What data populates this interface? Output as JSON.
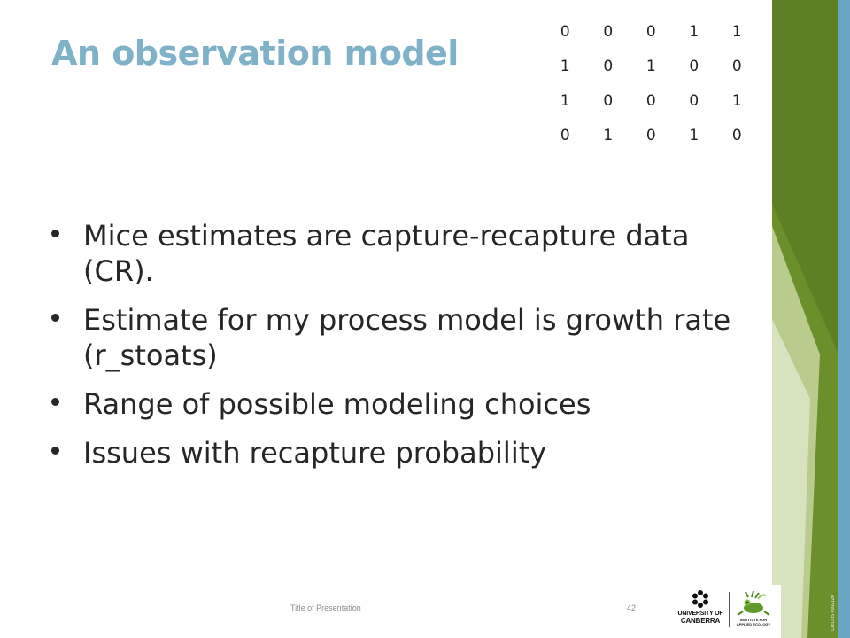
{
  "slide": {
    "title": "An observation model",
    "matrix": [
      [
        "0",
        "0",
        "0",
        "1",
        "1"
      ],
      [
        "1",
        "0",
        "1",
        "0",
        "0"
      ],
      [
        "1",
        "0",
        "0",
        "0",
        "1"
      ],
      [
        "0",
        "1",
        "0",
        "1",
        "0"
      ]
    ],
    "bullets": [
      "Mice estimates are capture-recapture data (CR).",
      "Estimate for my process model is growth rate (r_stoats)",
      "Range of possible modeling choices",
      "Issues with recapture probability"
    ]
  },
  "footer": {
    "presentation_title": "Title of Presentation",
    "page_number": "42",
    "cricos": "CRICOS #00212K"
  },
  "logos": {
    "university_line1": "UNIVERSITY OF",
    "university_line2": "CANBERRA",
    "institute_line1": "INSTITUTE FOR",
    "institute_line2": "APPLIED ECOLOGY"
  },
  "colors": {
    "title": "#7fb2c8",
    "bar_green_dark": "#5f7f24",
    "bar_blue": "#6aa7c4",
    "text": "#262626"
  }
}
